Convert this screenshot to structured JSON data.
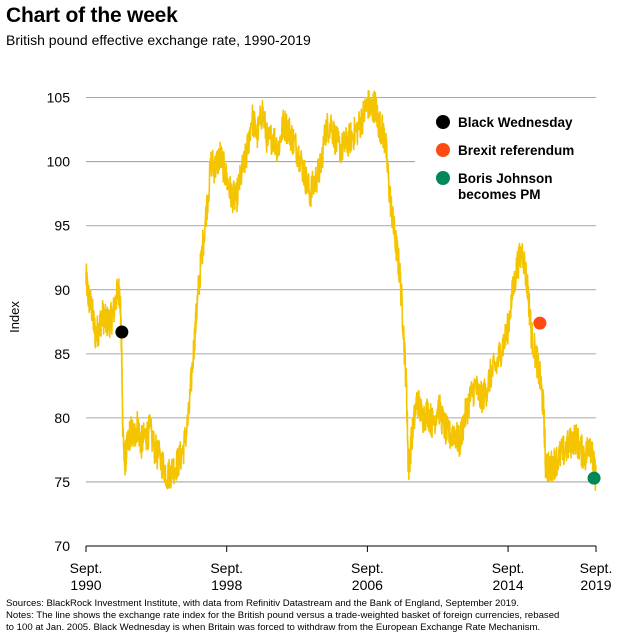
{
  "header": {
    "title": "Chart of the week",
    "subtitle": "British pound effective exchange rate, 1990-2019"
  },
  "footer": {
    "sources": "Sources: BlackRock Investment Institute, with data from Refinitiv Datastream and the Bank of England, September 2019.",
    "notes_line1": "Notes: The line shows the exchange rate index for the British pound versus a trade-weighted basket of foreign currencies, rebased",
    "notes_line2": "to 100 at Jan. 2005. Black Wednesday is when Britain was forced to withdraw from the European Exchange Rate Mechanism."
  },
  "chart_data": {
    "type": "line",
    "title": "",
    "xlabel": "",
    "ylabel": "Index",
    "xlim": [
      1990.67,
      2019.67
    ],
    "ylim": [
      70,
      107
    ],
    "yticks": [
      70,
      75,
      80,
      85,
      90,
      95,
      100,
      105
    ],
    "xticks": [
      {
        "value": 1990.67,
        "line1": "Sept.",
        "line2": "1990"
      },
      {
        "value": 1998.67,
        "line1": "Sept.",
        "line2": "1998"
      },
      {
        "value": 2006.67,
        "line1": "Sept.",
        "line2": "2006"
      },
      {
        "value": 2014.67,
        "line1": "Sept.",
        "line2": "2014"
      },
      {
        "value": 2019.67,
        "line1": "Sept.",
        "line2": "2019"
      }
    ],
    "grid": true,
    "line_color": "#F5C400",
    "series": [
      {
        "x": [
          1990.67,
          1990.8,
          1991.0,
          1991.2,
          1991.4,
          1991.6,
          1991.8,
          1992.0,
          1992.2,
          1992.4,
          1992.6,
          1992.7,
          1992.75,
          1992.85,
          1993.0,
          1993.2,
          1993.4,
          1993.6,
          1993.8,
          1994.0,
          1994.3,
          1994.6,
          1995.0,
          1995.3,
          1995.6,
          1995.9,
          1996.2,
          1996.5,
          1996.8,
          1997.0,
          1997.2,
          1997.5,
          1997.8,
          1998.0,
          1998.3,
          1998.6,
          1998.9,
          1999.2,
          1999.5,
          1999.8,
          2000.1,
          2000.4,
          2000.7,
          2001.0,
          2001.3,
          2001.6,
          2001.9,
          2002.2,
          2002.5,
          2002.8,
          2003.1,
          2003.4,
          2003.7,
          2004.0,
          2004.3,
          2004.6,
          2004.9,
          2005.2,
          2005.5,
          2005.8,
          2006.1,
          2006.4,
          2006.7,
          2006.9,
          2007.1,
          2007.3,
          2007.5,
          2007.7,
          2007.9,
          2008.1,
          2008.3,
          2008.5,
          2008.7,
          2008.9,
          2009.0,
          2009.2,
          2009.5,
          2009.8,
          2010.1,
          2010.4,
          2010.7,
          2011.0,
          2011.3,
          2011.6,
          2011.9,
          2012.2,
          2012.5,
          2012.8,
          2013.1,
          2013.4,
          2013.7,
          2014.0,
          2014.3,
          2014.6,
          2014.9,
          2015.2,
          2015.5,
          2015.8,
          2016.0,
          2016.3,
          2016.5,
          2016.7,
          2016.8,
          2017.0,
          2017.3,
          2017.6,
          2017.9,
          2018.2,
          2018.5,
          2018.8,
          2019.1,
          2019.3,
          2019.5,
          2019.67
        ],
        "y": [
          91.0,
          89.5,
          88.5,
          86.5,
          87.0,
          88.0,
          87.5,
          87.5,
          88.0,
          89.5,
          90.0,
          85.0,
          80.0,
          76.5,
          77.5,
          79.0,
          78.5,
          79.5,
          78.0,
          78.5,
          79.0,
          77.5,
          76.5,
          75.5,
          76.0,
          76.5,
          77.5,
          80.0,
          85.5,
          89.0,
          92.0,
          96.0,
          100.0,
          99.5,
          100.5,
          99.0,
          97.5,
          97.0,
          99.0,
          100.5,
          103.5,
          102.0,
          104.0,
          101.5,
          102.0,
          101.0,
          103.0,
          102.5,
          101.5,
          100.5,
          99.0,
          97.5,
          98.5,
          99.5,
          102.5,
          103.0,
          101.5,
          101.0,
          101.5,
          102.0,
          102.5,
          103.5,
          104.5,
          104.0,
          104.5,
          103.0,
          102.5,
          101.5,
          98.0,
          95.5,
          93.5,
          91.5,
          87.5,
          82.0,
          76.0,
          78.5,
          81.5,
          80.0,
          80.5,
          79.5,
          81.0,
          79.5,
          78.5,
          79.0,
          78.0,
          80.0,
          81.5,
          82.5,
          81.5,
          82.0,
          83.5,
          84.0,
          85.5,
          86.5,
          89.5,
          92.0,
          93.0,
          90.0,
          86.5,
          84.5,
          83.0,
          80.5,
          76.5,
          76.0,
          76.5,
          77.0,
          77.5,
          78.0,
          78.5,
          77.5,
          77.0,
          78.5,
          76.5,
          75.3
        ]
      }
    ],
    "events": [
      {
        "name": "Black Wednesday",
        "x": 1992.71,
        "y": 86.7,
        "color": "#000000"
      },
      {
        "name": "Brexit referendum",
        "x": 2016.48,
        "y": 87.4,
        "color": "#FF4A12"
      },
      {
        "name": "Boris Johnson becomes PM",
        "x": 2019.56,
        "y": 75.3,
        "color": "#00875A"
      }
    ],
    "legend": {
      "placement": "top-right",
      "items": [
        {
          "line1": "Black Wednesday",
          "line2": "",
          "color": "#000000"
        },
        {
          "line1": "Brexit referendum",
          "line2": "",
          "color": "#FF4A12"
        },
        {
          "line1": "Boris Johnson",
          "line2": "becomes PM",
          "color": "#00875A"
        }
      ]
    }
  }
}
